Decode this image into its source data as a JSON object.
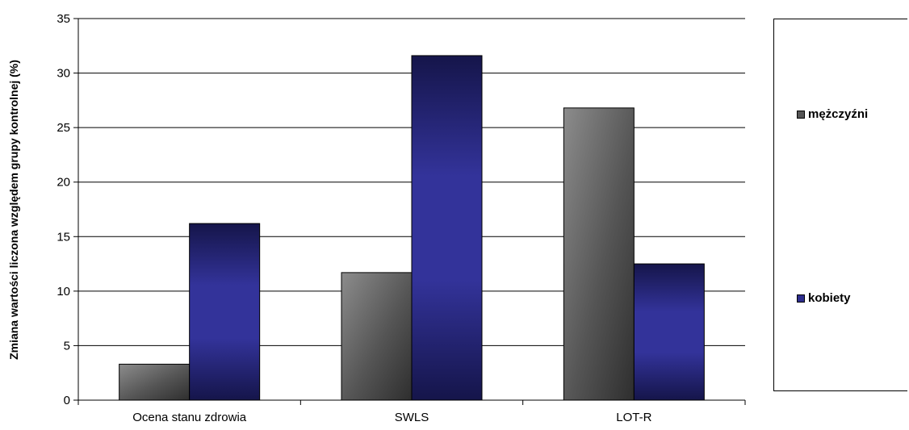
{
  "chart_data": {
    "type": "bar",
    "categories": [
      "Ocena stanu zdrowia",
      "SWLS",
      "LOT-R"
    ],
    "series": [
      {
        "name": "mężczyźni",
        "values": [
          3.3,
          11.7,
          26.8
        ],
        "color": "#5e5e5e"
      },
      {
        "name": "kobiety",
        "values": [
          16.2,
          31.6,
          12.5
        ],
        "color": "#2e2e8e"
      }
    ],
    "ylabel": "Zmiana wartości liczona względem grupy kontrolnej (%)",
    "xlabel": "",
    "ylim": [
      0,
      35
    ],
    "yticks": [
      0,
      5,
      10,
      15,
      20,
      25,
      30,
      35
    ],
    "grid": true,
    "legend": "right"
  }
}
